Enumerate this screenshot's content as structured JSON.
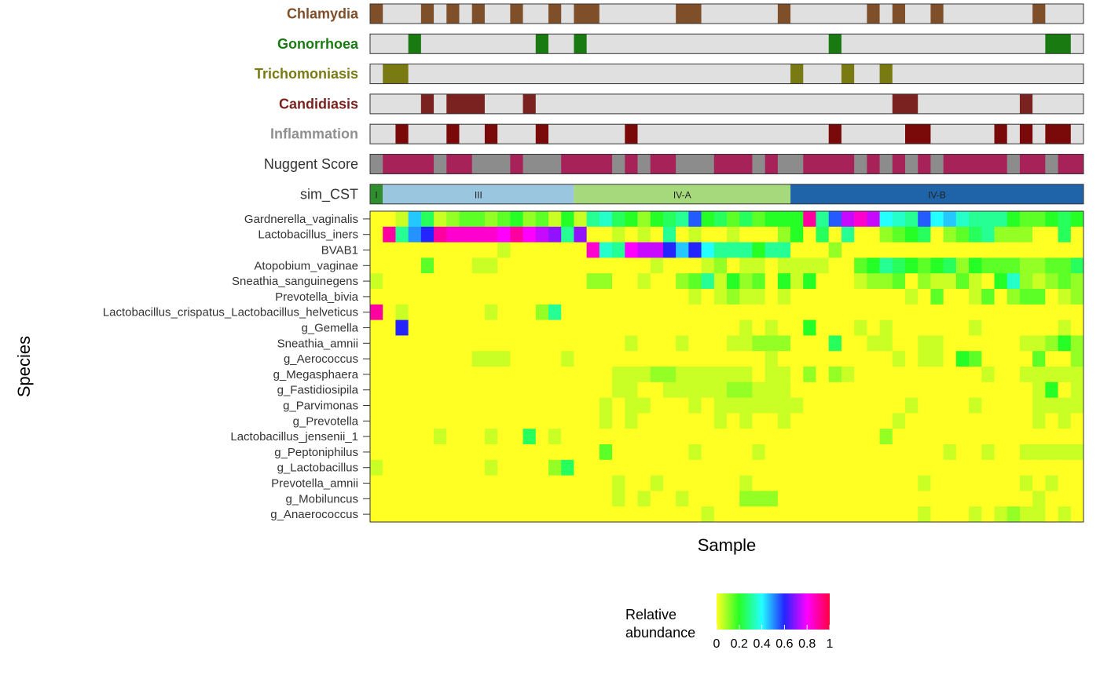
{
  "chart_data": {
    "type": "heatmap",
    "title": "",
    "xlabel": "Sample",
    "ylabel": "Species",
    "n_samples": 56,
    "annotation_tracks": [
      {
        "label": "Chlamydia",
        "label_color": "#7f4f2a",
        "label_bold": true,
        "positive_color": "#7f4f2a",
        "negative_color": "#e0e0e0",
        "positive_samples": [
          0,
          4,
          6,
          8,
          11,
          14,
          16,
          17,
          24,
          25,
          32,
          39,
          41,
          44,
          52
        ]
      },
      {
        "label": "Gonorrhoea",
        "label_color": "#1a7a12",
        "label_bold": true,
        "positive_color": "#1a7a12",
        "negative_color": "#e0e0e0",
        "positive_samples": [
          3,
          13,
          16,
          36,
          53,
          54
        ]
      },
      {
        "label": "Trichomoniasis",
        "label_color": "#7a7a12",
        "label_bold": true,
        "positive_color": "#7a7a12",
        "negative_color": "#e0e0e0",
        "positive_samples": [
          1,
          2,
          33,
          37,
          40
        ]
      },
      {
        "label": "Candidiasis",
        "label_color": "#7a2220",
        "label_bold": true,
        "positive_color": "#7a2220",
        "negative_color": "#e0e0e0",
        "positive_samples": [
          4,
          6,
          7,
          8,
          12,
          41,
          42,
          51
        ]
      },
      {
        "label": "Inflammation",
        "label_color": "#909090",
        "label_bold": true,
        "positive_color": "#7a0a0a",
        "negative_color": "#e0e0e0",
        "positive_samples": [
          2,
          6,
          9,
          13,
          20,
          36,
          42,
          43,
          49,
          51,
          53,
          54
        ]
      }
    ],
    "nuggent_track": {
      "label": "Nuggent Score",
      "label_color": "#333333",
      "colors": {
        "high": "#a8225a",
        "other": "#8c8c8c"
      },
      "values": [
        "other",
        "high",
        "high",
        "high",
        "high",
        "other",
        "high",
        "high",
        "other",
        "other",
        "other",
        "high",
        "other",
        "other",
        "other",
        "high",
        "high",
        "high",
        "high",
        "other",
        "high",
        "other",
        "high",
        "high",
        "other",
        "other",
        "other",
        "high",
        "high",
        "high",
        "other",
        "high",
        "other",
        "other",
        "high",
        "high",
        "high",
        "high",
        "other",
        "high",
        "other",
        "high",
        "other",
        "high",
        "other",
        "high",
        "high",
        "high",
        "high",
        "high",
        "other",
        "high",
        "high",
        "other",
        "high",
        "high"
      ]
    },
    "cst_track": {
      "label": "sim_CST",
      "groups": [
        {
          "label": "I",
          "start": 0,
          "end": 1,
          "color": "#2f8f2f"
        },
        {
          "label": "III",
          "start": 1,
          "end": 16,
          "color": "#9bc6df"
        },
        {
          "label": "IV-A",
          "start": 16,
          "end": 33,
          "color": "#a6d97c"
        },
        {
          "label": "IV-B",
          "start": 33,
          "end": 56,
          "color": "#1f63a8"
        }
      ]
    },
    "species": [
      "Gardnerella_vaginalis",
      "Lactobacillus_iners",
      "BVAB1",
      "Atopobium_vaginae",
      "Sneathia_sanguinegens",
      "Prevotella_bivia",
      "Lactobacillus_crispatus_Lactobacillus_helveticus",
      "g_Gemella",
      "Sneathia_amnii",
      "g_Aerococcus",
      "g_Megasphaera",
      "g_Fastidiosipila",
      "g_Parvimonas",
      "g_Prevotella",
      "Lactobacillus_jensenii_1",
      "g_Peptoniphilus",
      "g_Lactobacillus",
      "Prevotella_amnii",
      "g_Mobiluncus",
      "g_Anaerococcus"
    ],
    "values": [
      [
        0.0,
        0.0,
        0.05,
        0.45,
        0.25,
        0.05,
        0.1,
        0.15,
        0.15,
        0.1,
        0.15,
        0.2,
        0.1,
        0.15,
        0.05,
        0.2,
        0.05,
        0.3,
        0.35,
        0.25,
        0.2,
        0.1,
        0.2,
        0.25,
        0.3,
        0.55,
        0.2,
        0.25,
        0.15,
        0.25,
        0.15,
        0.2,
        0.2,
        0.2,
        0.9,
        0.3,
        0.55,
        0.75,
        0.85,
        0.75,
        0.4,
        0.35,
        0.3,
        0.55,
        0.4,
        0.45,
        0.35,
        0.3,
        0.3,
        0.3,
        0.2,
        0.15,
        0.15,
        0.2,
        0.25,
        0.2
      ],
      [
        0.0,
        0.9,
        0.3,
        0.5,
        0.6,
        0.9,
        0.85,
        0.85,
        0.85,
        0.85,
        0.8,
        0.9,
        0.8,
        0.75,
        0.7,
        0.3,
        0.7,
        0.0,
        0.0,
        0.05,
        0.0,
        0.05,
        0.0,
        0.3,
        0.0,
        0.05,
        0.0,
        0.0,
        0.05,
        0.0,
        0.0,
        0.0,
        0.1,
        0.2,
        0.0,
        0.25,
        0.0,
        0.3,
        0.0,
        0.0,
        0.1,
        0.15,
        0.2,
        0.25,
        0.0,
        0.1,
        0.15,
        0.25,
        0.3,
        0.1,
        0.1,
        0.1,
        0.0,
        0.0,
        0.25,
        0.0
      ],
      [
        0.0,
        0.0,
        0.0,
        0.0,
        0.0,
        0.0,
        0.0,
        0.0,
        0.0,
        0.0,
        0.05,
        0.0,
        0.0,
        0.0,
        0.0,
        0.0,
        0.0,
        0.85,
        0.35,
        0.3,
        0.8,
        0.75,
        0.75,
        0.6,
        0.45,
        0.6,
        0.4,
        0.3,
        0.3,
        0.3,
        0.2,
        0.3,
        0.3,
        0.0,
        0.0,
        0.0,
        0.1,
        0.0,
        0.0,
        0.0,
        0.0,
        0.0,
        0.0,
        0.0,
        0.0,
        0.0,
        0.0,
        0.0,
        0.0,
        0.0,
        0.0,
        0.0,
        0.0,
        0.0,
        0.0,
        0.0
      ],
      [
        0.0,
        0.0,
        0.0,
        0.0,
        0.15,
        0.0,
        0.0,
        0.0,
        0.05,
        0.05,
        0.0,
        0.0,
        0.0,
        0.0,
        0.0,
        0.0,
        0.0,
        0.0,
        0.0,
        0.0,
        0.0,
        0.0,
        0.05,
        0.0,
        0.0,
        0.0,
        0.05,
        0.1,
        0.0,
        0.05,
        0.05,
        0.0,
        0.05,
        0.05,
        0.05,
        0.05,
        0.0,
        0.0,
        0.15,
        0.2,
        0.3,
        0.25,
        0.2,
        0.15,
        0.2,
        0.25,
        0.1,
        0.2,
        0.15,
        0.15,
        0.15,
        0.1,
        0.1,
        0.15,
        0.15,
        0.25
      ],
      [
        0.05,
        0.0,
        0.0,
        0.0,
        0.0,
        0.0,
        0.0,
        0.0,
        0.0,
        0.0,
        0.0,
        0.0,
        0.0,
        0.0,
        0.0,
        0.0,
        0.0,
        0.1,
        0.1,
        0.0,
        0.0,
        0.05,
        0.0,
        0.0,
        0.1,
        0.15,
        0.3,
        0.05,
        0.2,
        0.1,
        0.15,
        0.0,
        0.2,
        0.05,
        0.2,
        0.0,
        0.0,
        0.0,
        0.05,
        0.1,
        0.1,
        0.15,
        0.0,
        0.1,
        0.05,
        0.05,
        0.15,
        0.05,
        0.0,
        0.2,
        0.35,
        0.1,
        0.05,
        0.1,
        0.15,
        0.1
      ],
      [
        0.0,
        0.0,
        0.0,
        0.0,
        0.0,
        0.0,
        0.0,
        0.0,
        0.0,
        0.0,
        0.0,
        0.0,
        0.0,
        0.0,
        0.0,
        0.0,
        0.0,
        0.0,
        0.0,
        0.0,
        0.0,
        0.0,
        0.0,
        0.0,
        0.0,
        0.05,
        0.0,
        0.05,
        0.1,
        0.05,
        0.05,
        0.0,
        0.05,
        0.0,
        0.0,
        0.0,
        0.0,
        0.0,
        0.0,
        0.0,
        0.0,
        0.0,
        0.05,
        0.0,
        0.15,
        0.0,
        0.0,
        0.05,
        0.15,
        0.0,
        0.1,
        0.15,
        0.15,
        0.0,
        0.05,
        0.1
      ],
      [
        0.9,
        0.0,
        0.05,
        0.0,
        0.0,
        0.0,
        0.0,
        0.0,
        0.0,
        0.05,
        0.0,
        0.0,
        0.0,
        0.1,
        0.3,
        0.0,
        0.0,
        0.0,
        0.0,
        0.0,
        0.0,
        0.0,
        0.0,
        0.0,
        0.0,
        0.0,
        0.0,
        0.0,
        0.0,
        0.0,
        0.0,
        0.0,
        0.0,
        0.0,
        0.0,
        0.0,
        0.0,
        0.0,
        0.0,
        0.0,
        0.0,
        0.0,
        0.0,
        0.0,
        0.0,
        0.0,
        0.0,
        0.0,
        0.0,
        0.0,
        0.0,
        0.0,
        0.0,
        0.0,
        0.0,
        0.0
      ],
      [
        0.0,
        0.0,
        0.6,
        0.0,
        0.0,
        0.0,
        0.0,
        0.0,
        0.0,
        0.0,
        0.0,
        0.0,
        0.0,
        0.0,
        0.0,
        0.0,
        0.0,
        0.0,
        0.0,
        0.0,
        0.0,
        0.0,
        0.0,
        0.0,
        0.0,
        0.0,
        0.0,
        0.0,
        0.0,
        0.05,
        0.0,
        0.05,
        0.0,
        0.0,
        0.2,
        0.0,
        0.0,
        0.0,
        0.05,
        0.0,
        0.05,
        0.0,
        0.0,
        0.0,
        0.0,
        0.0,
        0.0,
        0.05,
        0.0,
        0.0,
        0.0,
        0.0,
        0.0,
        0.0,
        0.05,
        0.0
      ],
      [
        0.0,
        0.0,
        0.0,
        0.0,
        0.0,
        0.0,
        0.0,
        0.0,
        0.0,
        0.0,
        0.0,
        0.0,
        0.0,
        0.0,
        0.0,
        0.0,
        0.0,
        0.0,
        0.0,
        0.0,
        0.05,
        0.0,
        0.0,
        0.0,
        0.05,
        0.0,
        0.0,
        0.0,
        0.05,
        0.05,
        0.1,
        0.1,
        0.1,
        0.0,
        0.0,
        0.0,
        0.25,
        0.0,
        0.0,
        0.05,
        0.05,
        0.0,
        0.0,
        0.05,
        0.05,
        0.0,
        0.0,
        0.0,
        0.0,
        0.0,
        0.0,
        0.05,
        0.05,
        0.1,
        0.2,
        0.1
      ],
      [
        0.0,
        0.0,
        0.0,
        0.0,
        0.0,
        0.0,
        0.0,
        0.0,
        0.05,
        0.05,
        0.05,
        0.0,
        0.0,
        0.0,
        0.0,
        0.05,
        0.0,
        0.0,
        0.0,
        0.0,
        0.0,
        0.0,
        0.0,
        0.0,
        0.0,
        0.0,
        0.0,
        0.0,
        0.0,
        0.0,
        0.0,
        0.05,
        0.0,
        0.0,
        0.0,
        0.0,
        0.0,
        0.0,
        0.0,
        0.0,
        0.0,
        0.05,
        0.0,
        0.05,
        0.05,
        0.0,
        0.2,
        0.15,
        0.0,
        0.0,
        0.0,
        0.0,
        0.15,
        0.0,
        0.0,
        0.1
      ],
      [
        0.0,
        0.0,
        0.0,
        0.0,
        0.0,
        0.0,
        0.0,
        0.0,
        0.0,
        0.0,
        0.0,
        0.0,
        0.0,
        0.0,
        0.0,
        0.0,
        0.0,
        0.0,
        0.0,
        0.05,
        0.05,
        0.05,
        0.1,
        0.1,
        0.05,
        0.05,
        0.05,
        0.05,
        0.05,
        0.05,
        0.0,
        0.05,
        0.05,
        0.0,
        0.1,
        0.0,
        0.1,
        0.05,
        0.0,
        0.0,
        0.0,
        0.0,
        0.0,
        0.0,
        0.0,
        0.0,
        0.0,
        0.0,
        0.05,
        0.0,
        0.0,
        0.05,
        0.05,
        0.05,
        0.05,
        0.05
      ],
      [
        0.0,
        0.0,
        0.0,
        0.0,
        0.0,
        0.0,
        0.0,
        0.0,
        0.0,
        0.0,
        0.0,
        0.0,
        0.0,
        0.0,
        0.0,
        0.0,
        0.0,
        0.0,
        0.0,
        0.05,
        0.05,
        0.0,
        0.0,
        0.05,
        0.05,
        0.05,
        0.05,
        0.05,
        0.1,
        0.1,
        0.05,
        0.05,
        0.05,
        0.0,
        0.0,
        0.0,
        0.0,
        0.0,
        0.0,
        0.0,
        0.0,
        0.0,
        0.0,
        0.0,
        0.0,
        0.0,
        0.0,
        0.0,
        0.0,
        0.0,
        0.0,
        0.0,
        0.05,
        0.2,
        0.0,
        0.05
      ],
      [
        0.0,
        0.0,
        0.0,
        0.0,
        0.0,
        0.0,
        0.0,
        0.0,
        0.0,
        0.0,
        0.0,
        0.0,
        0.0,
        0.0,
        0.0,
        0.0,
        0.0,
        0.0,
        0.05,
        0.0,
        0.05,
        0.05,
        0.0,
        0.0,
        0.0,
        0.05,
        0.0,
        0.05,
        0.05,
        0.05,
        0.05,
        0.05,
        0.05,
        0.05,
        0.0,
        0.0,
        0.0,
        0.0,
        0.0,
        0.0,
        0.0,
        0.0,
        0.05,
        0.0,
        0.0,
        0.0,
        0.0,
        0.05,
        0.0,
        0.0,
        0.0,
        0.0,
        0.05,
        0.05,
        0.05,
        0.05
      ],
      [
        0.0,
        0.0,
        0.0,
        0.0,
        0.0,
        0.0,
        0.0,
        0.0,
        0.0,
        0.0,
        0.0,
        0.0,
        0.0,
        0.0,
        0.0,
        0.0,
        0.0,
        0.0,
        0.05,
        0.0,
        0.05,
        0.0,
        0.0,
        0.0,
        0.0,
        0.0,
        0.0,
        0.05,
        0.0,
        0.05,
        0.0,
        0.0,
        0.05,
        0.0,
        0.0,
        0.0,
        0.0,
        0.0,
        0.0,
        0.0,
        0.0,
        0.05,
        0.0,
        0.0,
        0.0,
        0.0,
        0.0,
        0.0,
        0.0,
        0.0,
        0.0,
        0.0,
        0.05,
        0.0,
        0.05,
        0.0
      ],
      [
        0.0,
        0.0,
        0.0,
        0.0,
        0.0,
        0.05,
        0.0,
        0.0,
        0.0,
        0.05,
        0.0,
        0.0,
        0.25,
        0.0,
        0.05,
        0.0,
        0.0,
        0.0,
        0.0,
        0.0,
        0.0,
        0.0,
        0.0,
        0.0,
        0.0,
        0.0,
        0.0,
        0.0,
        0.0,
        0.0,
        0.0,
        0.0,
        0.0,
        0.0,
        0.0,
        0.0,
        0.0,
        0.0,
        0.0,
        0.0,
        0.1,
        0.0,
        0.0,
        0.0,
        0.0,
        0.0,
        0.0,
        0.0,
        0.0,
        0.0,
        0.0,
        0.0,
        0.0,
        0.0,
        0.0,
        0.0
      ],
      [
        0.0,
        0.0,
        0.0,
        0.0,
        0.0,
        0.0,
        0.0,
        0.0,
        0.0,
        0.0,
        0.0,
        0.0,
        0.0,
        0.0,
        0.0,
        0.0,
        0.0,
        0.0,
        0.15,
        0.0,
        0.0,
        0.0,
        0.0,
        0.0,
        0.0,
        0.05,
        0.0,
        0.0,
        0.0,
        0.0,
        0.05,
        0.0,
        0.0,
        0.0,
        0.0,
        0.0,
        0.0,
        0.0,
        0.0,
        0.0,
        0.0,
        0.0,
        0.0,
        0.0,
        0.0,
        0.05,
        0.0,
        0.0,
        0.05,
        0.0,
        0.0,
        0.05,
        0.05,
        0.05,
        0.05,
        0.05
      ],
      [
        0.05,
        0.0,
        0.0,
        0.0,
        0.0,
        0.0,
        0.0,
        0.0,
        0.0,
        0.05,
        0.0,
        0.0,
        0.0,
        0.0,
        0.1,
        0.25,
        0.0,
        0.0,
        0.0,
        0.0,
        0.0,
        0.0,
        0.0,
        0.0,
        0.0,
        0.0,
        0.0,
        0.0,
        0.0,
        0.0,
        0.0,
        0.0,
        0.0,
        0.0,
        0.0,
        0.0,
        0.0,
        0.0,
        0.0,
        0.0,
        0.0,
        0.0,
        0.0,
        0.0,
        0.0,
        0.0,
        0.0,
        0.0,
        0.0,
        0.0,
        0.0,
        0.0,
        0.0,
        0.0,
        0.0,
        0.0
      ],
      [
        0.0,
        0.0,
        0.0,
        0.0,
        0.0,
        0.0,
        0.0,
        0.0,
        0.0,
        0.0,
        0.0,
        0.0,
        0.0,
        0.0,
        0.0,
        0.0,
        0.0,
        0.0,
        0.0,
        0.05,
        0.0,
        0.0,
        0.05,
        0.0,
        0.0,
        0.0,
        0.0,
        0.0,
        0.0,
        0.05,
        0.0,
        0.0,
        0.0,
        0.0,
        0.0,
        0.0,
        0.0,
        0.0,
        0.0,
        0.0,
        0.0,
        0.0,
        0.0,
        0.05,
        0.0,
        0.0,
        0.0,
        0.0,
        0.0,
        0.0,
        0.0,
        0.05,
        0.0,
        0.05,
        0.0,
        0.0
      ],
      [
        0.0,
        0.0,
        0.0,
        0.0,
        0.0,
        0.0,
        0.0,
        0.0,
        0.0,
        0.0,
        0.0,
        0.0,
        0.0,
        0.0,
        0.0,
        0.0,
        0.0,
        0.0,
        0.0,
        0.05,
        0.0,
        0.05,
        0.0,
        0.0,
        0.05,
        0.0,
        0.0,
        0.0,
        0.0,
        0.1,
        0.1,
        0.1,
        0.0,
        0.0,
        0.0,
        0.0,
        0.0,
        0.0,
        0.0,
        0.0,
        0.0,
        0.0,
        0.0,
        0.0,
        0.0,
        0.0,
        0.0,
        0.0,
        0.0,
        0.0,
        0.0,
        0.0,
        0.05,
        0.0,
        0.0,
        0.0
      ],
      [
        0.0,
        0.0,
        0.0,
        0.0,
        0.0,
        0.0,
        0.0,
        0.0,
        0.0,
        0.0,
        0.0,
        0.0,
        0.0,
        0.0,
        0.0,
        0.0,
        0.0,
        0.0,
        0.0,
        0.0,
        0.0,
        0.0,
        0.0,
        0.0,
        0.0,
        0.0,
        0.05,
        0.0,
        0.0,
        0.0,
        0.0,
        0.0,
        0.0,
        0.0,
        0.0,
        0.0,
        0.0,
        0.0,
        0.0,
        0.0,
        0.0,
        0.0,
        0.0,
        0.05,
        0.0,
        0.0,
        0.0,
        0.05,
        0.0,
        0.05,
        0.1,
        0.05,
        0.05,
        0.0,
        0.05,
        0.0
      ]
    ],
    "colorbar": {
      "title_lines": [
        "Relative",
        "abundance"
      ],
      "tick_labels": [
        "0",
        "0.2",
        "0.4",
        "0.6",
        "0.8",
        "1"
      ],
      "tick_values": [
        0,
        0.2,
        0.4,
        0.6,
        0.8,
        1
      ],
      "range": [
        0,
        1
      ],
      "stops": [
        "#ffff24",
        "#26ff26",
        "#24ffff",
        "#2424ff",
        "#ff00ff",
        "#ff0040"
      ]
    }
  }
}
